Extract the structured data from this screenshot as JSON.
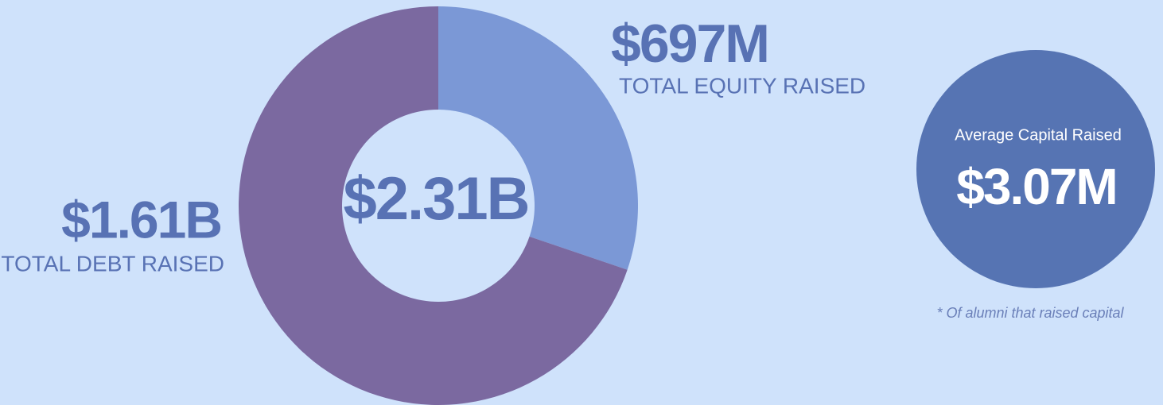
{
  "chart_data": {
    "type": "pie",
    "donut": true,
    "categories": [
      "TOTAL EQUITY RAISED",
      "TOTAL DEBT RAISED"
    ],
    "values": [
      697,
      1610
    ],
    "value_labels": [
      "$697M",
      "$1.61B"
    ],
    "colors": [
      "#7b98d6",
      "#7b69a0"
    ],
    "center_label": "$2.31B",
    "average": {
      "title": "Average Capital Raised",
      "value_label": "$3.07M"
    },
    "footnote": "* Of alumni that raised capital"
  }
}
